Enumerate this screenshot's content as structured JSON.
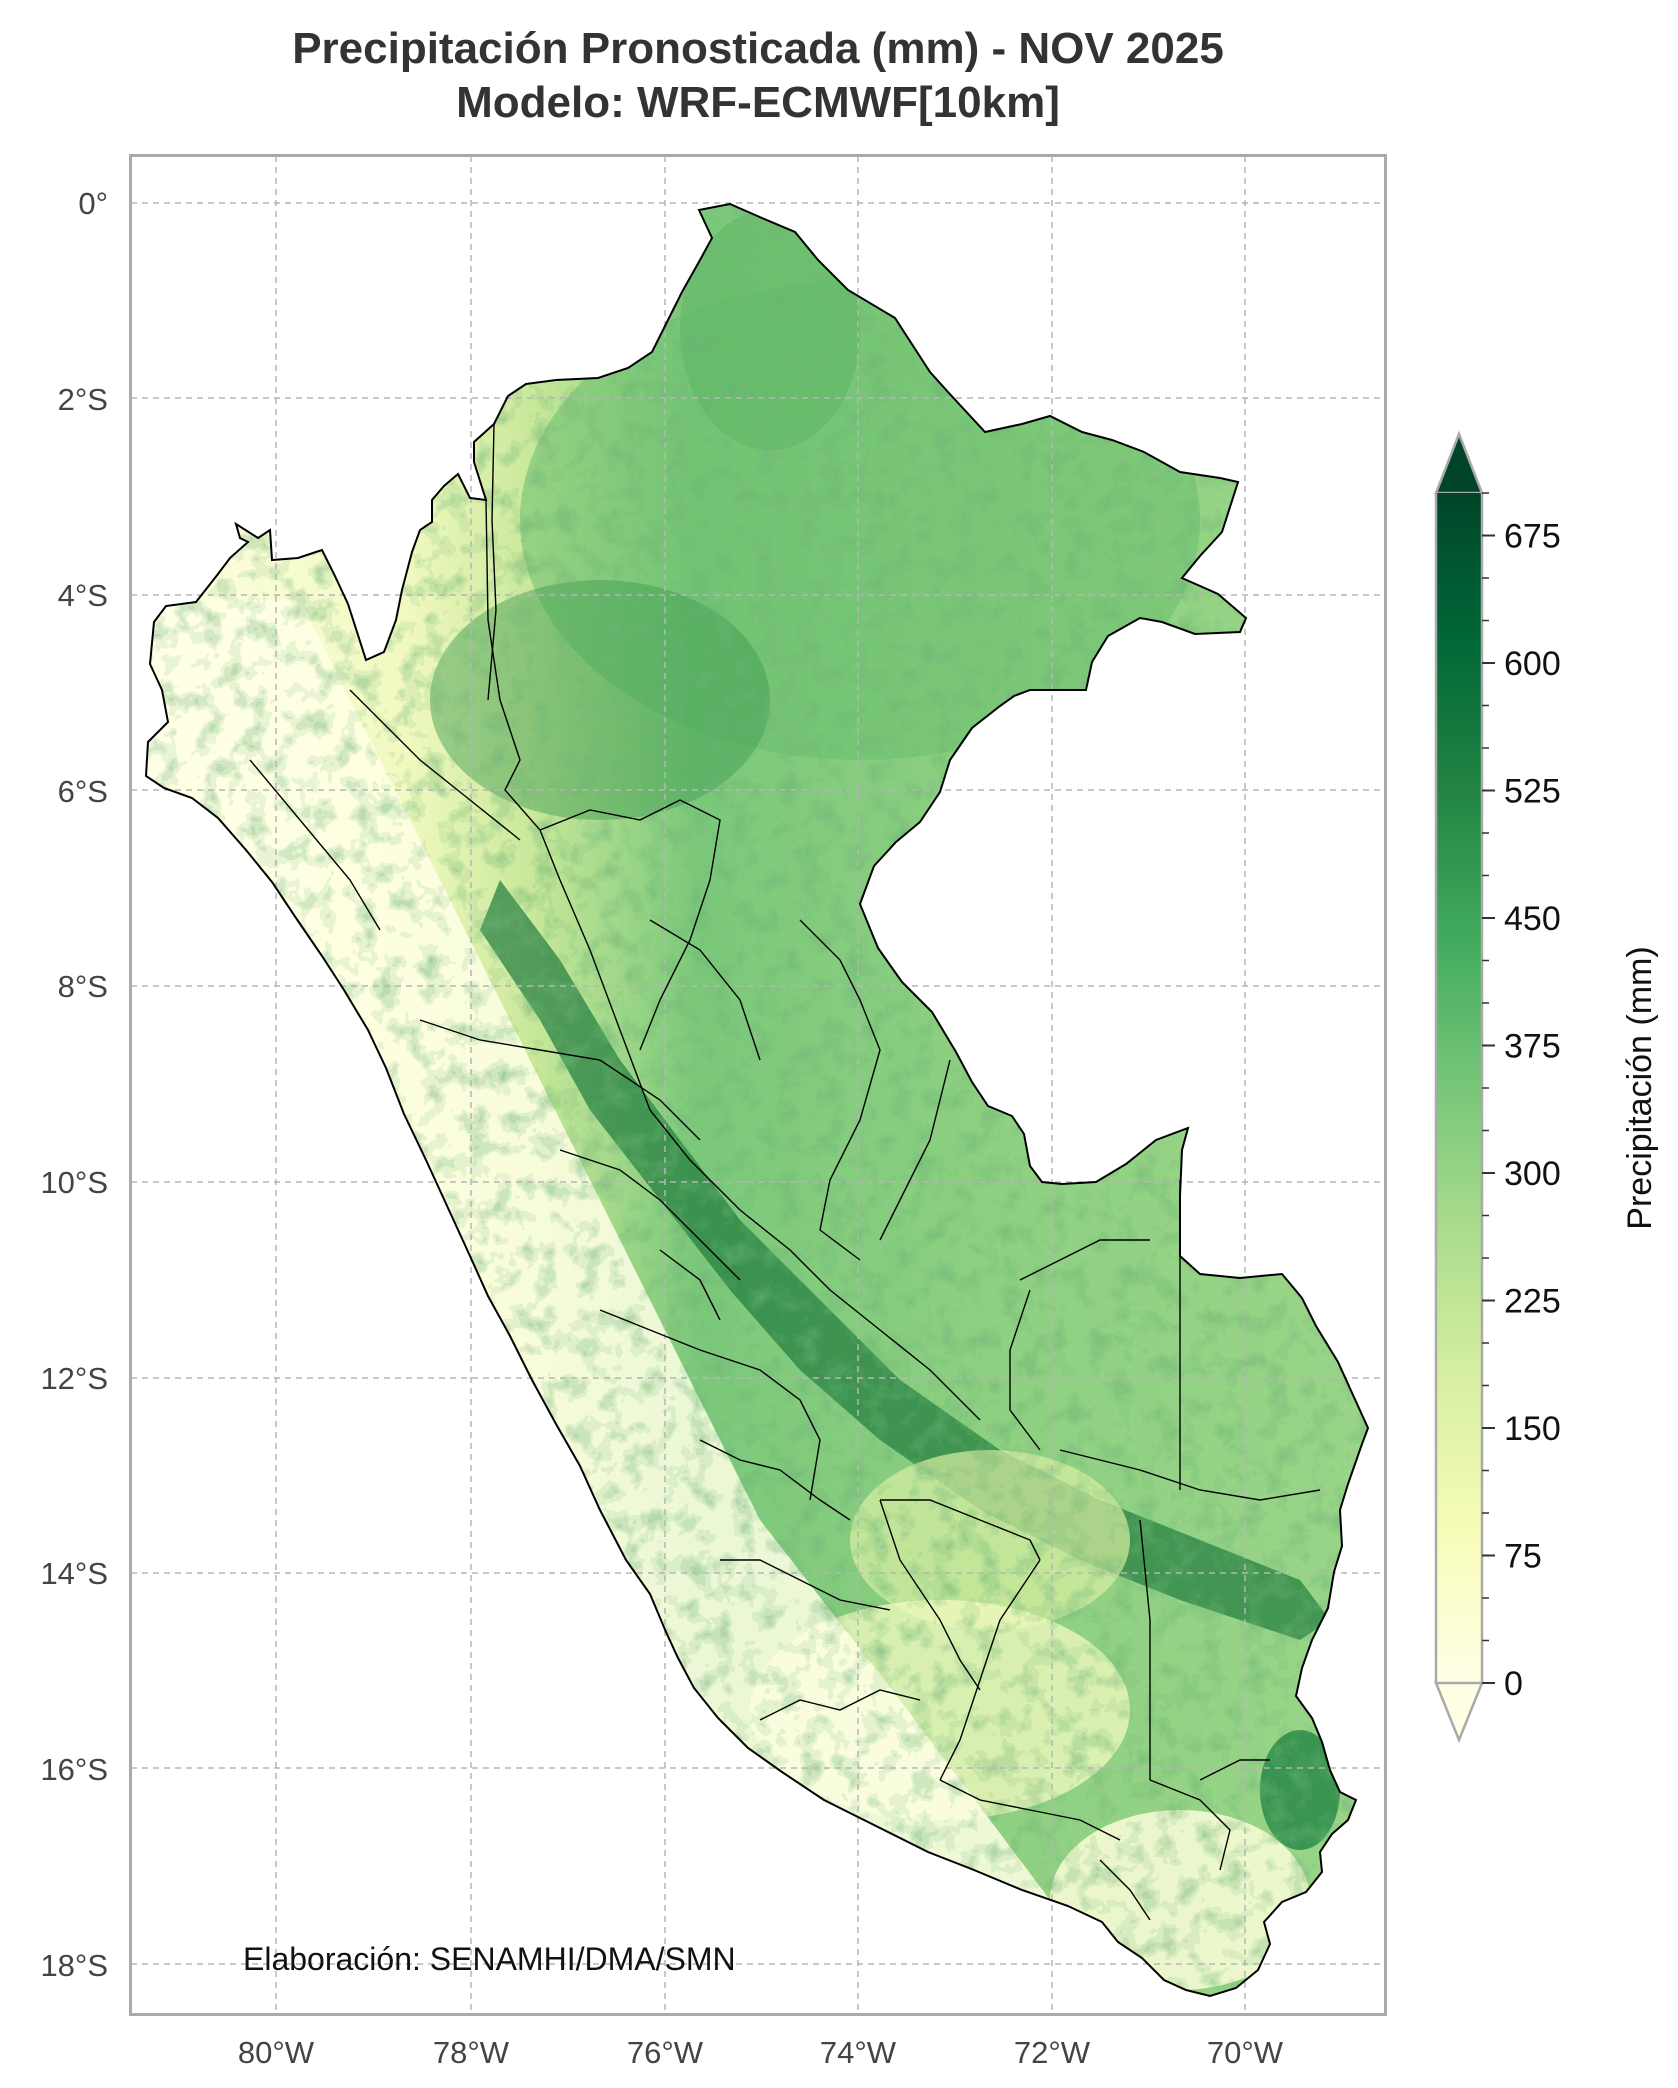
{
  "title": {
    "line1": "Precipitación Pronosticada (mm) - NOV 2025",
    "line2": "Modelo: WRF-ECMWF[10km]"
  },
  "credit": "Elaboración: SENAMHI/DMA/SMN",
  "axes": {
    "lat_labels": [
      "0°",
      "2°S",
      "4°S",
      "6°S",
      "8°S",
      "10°S",
      "12°S",
      "14°S",
      "16°S",
      "18°S"
    ],
    "lon_labels": [
      "80°W",
      "78°W",
      "76°W",
      "74°W",
      "72°W",
      "70°W"
    ],
    "lat_range": [
      0.5,
      -18.5
    ],
    "lon_range": [
      -81.5,
      -68.6
    ],
    "gridlines": true
  },
  "colorbar": {
    "label": "Precipitación (mm)",
    "ticks": [
      "0",
      "75",
      "150",
      "225",
      "300",
      "375",
      "450",
      "525",
      "600",
      "675"
    ],
    "range": [
      0,
      700
    ],
    "extend": "both",
    "colormap": "Greens",
    "colors": [
      "#ffffe5",
      "#f7fcb9",
      "#d9f0a3",
      "#addd8e",
      "#78c679",
      "#41ab5d",
      "#238443",
      "#006837",
      "#004529"
    ]
  },
  "colors": {
    "land_low": "#ffffe5",
    "land_high": "#004529",
    "border": "#000000",
    "grid": "#b5b5b5",
    "frame": "#aaaaaa"
  }
}
